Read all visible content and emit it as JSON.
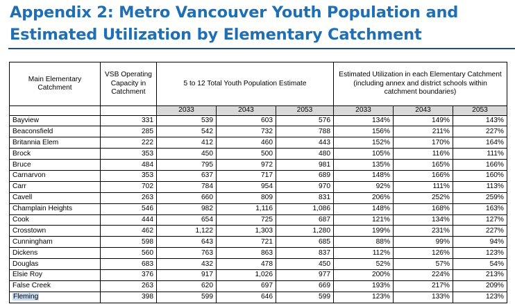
{
  "title": "Appendix 2: Metro Vancouver Youth Population and Estimated Utilization by Elementary Catchment",
  "table": {
    "headers": {
      "catchment": "Main Elementary Catchment",
      "capacity": "VSB Operating Capacity in Catchment",
      "population": "5 to 12 Total Youth Population Estimate",
      "utilization": "Estimated Utilization in each Elementary Catchment (including annex and district schools within catchment boundaries)"
    },
    "years": [
      "2033",
      "2043",
      "2053",
      "2033",
      "2043",
      "2053"
    ],
    "rows": [
      [
        "Bayview",
        "331",
        "539",
        "603",
        "576",
        "134%",
        "149%",
        "143%"
      ],
      [
        "Beaconsfield",
        "285",
        "542",
        "732",
        "788",
        "156%",
        "211%",
        "227%"
      ],
      [
        "Britannia Elem",
        "222",
        "412",
        "460",
        "443",
        "152%",
        "170%",
        "164%"
      ],
      [
        "Brock",
        "353",
        "450",
        "500",
        "480",
        "105%",
        "116%",
        "111%"
      ],
      [
        "Bruce",
        "484",
        "795",
        "972",
        "981",
        "135%",
        "165%",
        "166%"
      ],
      [
        "Carnarvon",
        "353",
        "637",
        "717",
        "689",
        "148%",
        "166%",
        "160%"
      ],
      [
        "Carr",
        "702",
        "784",
        "954",
        "970",
        "92%",
        "111%",
        "113%"
      ],
      [
        "Cavell",
        "263",
        "660",
        "809",
        "831",
        "206%",
        "252%",
        "259%"
      ],
      [
        "Champlain Heights",
        "546",
        "982",
        "1,116",
        "1,086",
        "148%",
        "168%",
        "163%"
      ],
      [
        "Cook",
        "444",
        "654",
        "725",
        "687",
        "121%",
        "134%",
        "127%"
      ],
      [
        "Crosstown",
        "462",
        "1,122",
        "1,303",
        "1,280",
        "199%",
        "231%",
        "227%"
      ],
      [
        "Cunningham",
        "598",
        "643",
        "721",
        "685",
        "88%",
        "99%",
        "94%"
      ],
      [
        "Dickens",
        "560",
        "763",
        "863",
        "837",
        "112%",
        "126%",
        "123%"
      ],
      [
        "Douglas",
        "683",
        "432",
        "478",
        "450",
        "52%",
        "57%",
        "54%"
      ],
      [
        "Elsie Roy",
        "376",
        "917",
        "1,026",
        "977",
        "200%",
        "224%",
        "213%"
      ],
      [
        "False Creek",
        "263",
        "620",
        "697",
        "669",
        "193%",
        "217%",
        "209%"
      ],
      [
        "Fleming",
        "398",
        "599",
        "646",
        "599",
        "123%",
        "133%",
        "123%"
      ]
    ],
    "highlighted_row": "Fleming"
  }
}
